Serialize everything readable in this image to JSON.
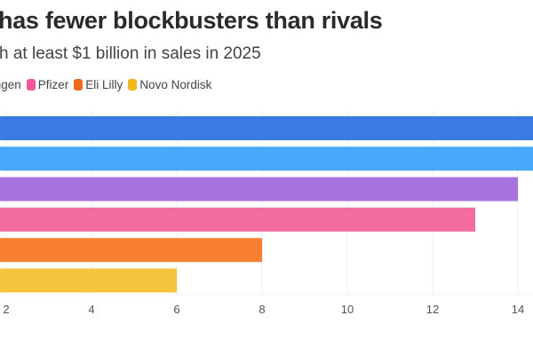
{
  "chart_data": {
    "type": "bar",
    "orientation": "horizontal",
    "title": "has fewer blockbusters than rivals",
    "subtitle": "h at least $1 billion in sales in 2025",
    "legend": [
      {
        "name": "mgen",
        "color": "#a873e0"
      },
      {
        "name": "Pfizer",
        "color": "#f26d9e"
      },
      {
        "name": "Eli Lilly",
        "color": "#f98033"
      },
      {
        "name": "Novo Nordisk",
        "color": "#f2c53d"
      }
    ],
    "legend_position": "top-left",
    "bars": [
      {
        "value": 15,
        "color": "#3b79e3"
      },
      {
        "value": 15,
        "color": "#48a9fb"
      },
      {
        "value": 14,
        "color": "#a873e0"
      },
      {
        "value": 13,
        "color": "#f26d9e"
      },
      {
        "value": 8,
        "color": "#f98033"
      },
      {
        "value": 6,
        "color": "#f2c53d"
      }
    ],
    "x_ticks": [
      "2",
      "4",
      "6",
      "8",
      "10",
      "12",
      "14"
    ],
    "xlim": [
      0,
      15
    ],
    "grid": true
  }
}
